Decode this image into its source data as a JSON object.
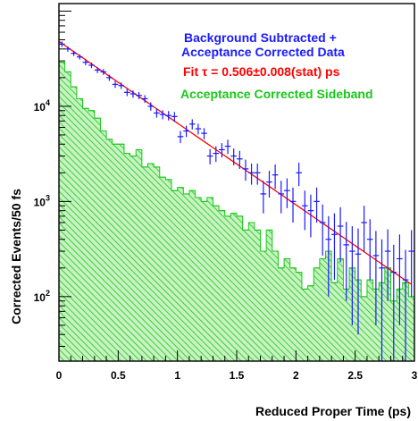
{
  "chart_data": {
    "type": "scatter",
    "xlabel": "Reduced Proper Time (ps)",
    "ylabel": "Corrected Events/50 fs",
    "xlim": [
      0,
      3
    ],
    "ylim": [
      21,
      120000
    ],
    "yscale": "log",
    "x_ticks": [
      {
        "value": 0,
        "label": "0"
      },
      {
        "value": 0.5,
        "label": "0.5"
      },
      {
        "value": 1,
        "label": "1"
      },
      {
        "value": 1.5,
        "label": "1.5"
      },
      {
        "value": 2,
        "label": "2"
      },
      {
        "value": 2.5,
        "label": "2.5"
      },
      {
        "value": 3,
        "label": "3"
      }
    ],
    "y_ticks": [
      {
        "value": 100,
        "base": "10",
        "exp": "2"
      },
      {
        "value": 1000,
        "base": "10",
        "exp": "3"
      },
      {
        "value": 10000,
        "base": "10",
        "exp": "4"
      }
    ],
    "colors": {
      "data": "#1a1aff",
      "fit": "#ff0000",
      "sideband": "#19c819",
      "sideband_fill": "#b6efb0"
    },
    "legend": {
      "position": "top-right",
      "entries": [
        {
          "text": "Background Subtracted +",
          "color": "#1a1aff"
        },
        {
          "text": "Acceptance Corrected Data",
          "color": "#1a1aff"
        },
        {
          "text": "Fit τ = 0.506±0.008(stat) ps",
          "color": "#ff0000"
        },
        {
          "text": "Acceptance Corrected Sideband",
          "color": "#19c819"
        }
      ]
    },
    "series": [
      {
        "name": "Background Subtracted + Acceptance Corrected Data",
        "kind": "points_with_error_bars",
        "x": [
          0.025,
          0.075,
          0.125,
          0.175,
          0.225,
          0.275,
          0.325,
          0.375,
          0.425,
          0.475,
          0.525,
          0.575,
          0.625,
          0.675,
          0.725,
          0.775,
          0.825,
          0.875,
          0.925,
          0.975,
          1.025,
          1.075,
          1.125,
          1.175,
          1.225,
          1.275,
          1.325,
          1.375,
          1.425,
          1.475,
          1.525,
          1.575,
          1.625,
          1.675,
          1.725,
          1.775,
          1.825,
          1.875,
          1.925,
          1.975,
          2.025,
          2.075,
          2.125,
          2.175,
          2.225,
          2.275,
          2.325,
          2.375,
          2.425,
          2.475,
          2.525,
          2.575,
          2.625,
          2.675,
          2.725,
          2.775,
          2.825,
          2.875,
          2.925,
          2.975
        ],
        "y": [
          45000,
          40000,
          36000,
          33000,
          29000,
          27000,
          24000,
          23000,
          20000,
          17000,
          16500,
          14000,
          13500,
          13000,
          12000,
          10000,
          8500,
          8200,
          8000,
          7800,
          4800,
          5500,
          6500,
          5800,
          5200,
          3000,
          3200,
          3500,
          3800,
          3000,
          2800,
          2200,
          2000,
          2000,
          1200,
          1600,
          1900,
          1200,
          1300,
          1000,
          2000,
          900,
          800,
          1000,
          600,
          400,
          450,
          550,
          350,
          300,
          280,
          600,
          400,
          270,
          200,
          300,
          180,
          250,
          150,
          300
        ],
        "yerr": [
          3000,
          2500,
          2200,
          2000,
          2000,
          1800,
          1700,
          1600,
          1500,
          1400,
          1300,
          1200,
          1200,
          1100,
          1100,
          1000,
          900,
          900,
          900,
          900,
          700,
          750,
          800,
          750,
          700,
          550,
          600,
          600,
          650,
          600,
          600,
          550,
          500,
          500,
          450,
          500,
          550,
          450,
          450,
          400,
          550,
          400,
          380,
          400,
          330,
          300,
          300,
          320,
          260,
          250,
          240,
          300,
          250,
          220,
          200,
          210,
          170,
          200,
          160,
          200
        ]
      },
      {
        "name": "Fit",
        "kind": "exponential_fit",
        "y0": 48000,
        "tau": 0.506,
        "x_range": [
          0,
          2.97
        ]
      },
      {
        "name": "Acceptance Corrected Sideband",
        "kind": "hatched_histogram",
        "bin_width": 0.05,
        "values": [
          29000,
          23000,
          16000,
          12000,
          9500,
          9000,
          7500,
          5500,
          4500,
          4000,
          4000,
          3200,
          3000,
          3500,
          2300,
          2500,
          2300,
          1800,
          1700,
          1300,
          1400,
          1200,
          1300,
          1100,
          1000,
          1100,
          900,
          800,
          700,
          750,
          700,
          500,
          600,
          500,
          300,
          500,
          300,
          200,
          250,
          200,
          180,
          120,
          130,
          200,
          250,
          300,
          140,
          250,
          120,
          200,
          150,
          100,
          150,
          120,
          140,
          200,
          90,
          120,
          140,
          100
        ]
      }
    ]
  }
}
